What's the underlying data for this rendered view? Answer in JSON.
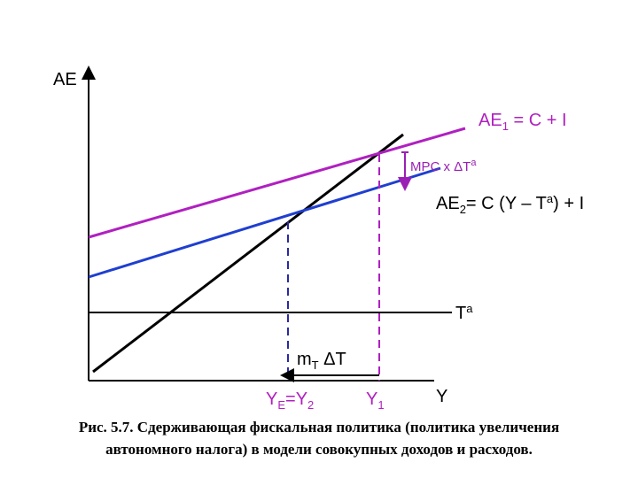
{
  "axes": {
    "y_label": "AE",
    "x_label": "Y"
  },
  "curves": {
    "ae1": {
      "main": "AE",
      "sub": "1",
      "rest": " = C + I"
    },
    "ae2": {
      "main": "AE",
      "sub": "2",
      "rest1": "= C (Y – T",
      "sup": "a",
      "rest2": ") + I"
    },
    "tax": {
      "main": "T",
      "sup": "a"
    }
  },
  "annotations": {
    "mpc": {
      "main": "MPC x ΔT",
      "sup": "a"
    },
    "mt": {
      "main": "m",
      "sub": "T",
      "rest": " ΔT"
    },
    "ye": {
      "main": "Y",
      "sub": "E",
      "mid": "=Y",
      "sub2": "2"
    },
    "y1": {
      "main": "Y",
      "sub": "1"
    }
  },
  "caption": {
    "line1": "Рис. 5.7. Сдерживающая  фискальная политика (политика увеличения",
    "line2": "автономного налога) в модели совокупных доходов и расходов."
  }
}
